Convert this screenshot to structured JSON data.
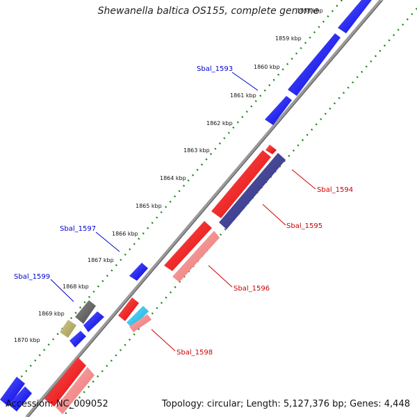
{
  "map": {
    "title": "Shewanella baltica OS155, complete genome",
    "accession_text": "Accession: NC_009052",
    "summary_text": "Topology: circular; Length: 5,127,376 bp; Genes: 4,448",
    "colors": {
      "backbone": "#808080",
      "forward_tick": "#1a8a1a",
      "blue_gene": "#0000ff",
      "red_gene": "#ff0000",
      "pink_gene": "#f08080",
      "navy_gene": "#3a3a8c",
      "gray_gene": "#606060",
      "khaki_gene": "#b5ad6a",
      "cyan_gene": "#22c0e8",
      "blue_label": "#0000cc",
      "red_label": "#cc0000"
    },
    "kbp_ticks": [
      "1858 kbp",
      "1859 kbp",
      "1860 kbp",
      "1861 kbp",
      "1862 kbp",
      "1863 kbp",
      "1864 kbp",
      "1865 kbp",
      "1866 kbp",
      "1867 kbp",
      "1868 kbp",
      "1869 kbp",
      "1870 kbp"
    ],
    "gene_labels": [
      {
        "text": "Sbal_1593",
        "strand": "forward"
      },
      {
        "text": "Sbal_1597",
        "strand": "forward"
      },
      {
        "text": "Sbal_1599",
        "strand": "forward"
      },
      {
        "text": "Sbal_1594",
        "strand": "reverse"
      },
      {
        "text": "Sbal_1595",
        "strand": "reverse"
      },
      {
        "text": "Sbal_1596",
        "strand": "reverse"
      },
      {
        "text": "Sbal_1598",
        "strand": "reverse"
      }
    ]
  }
}
